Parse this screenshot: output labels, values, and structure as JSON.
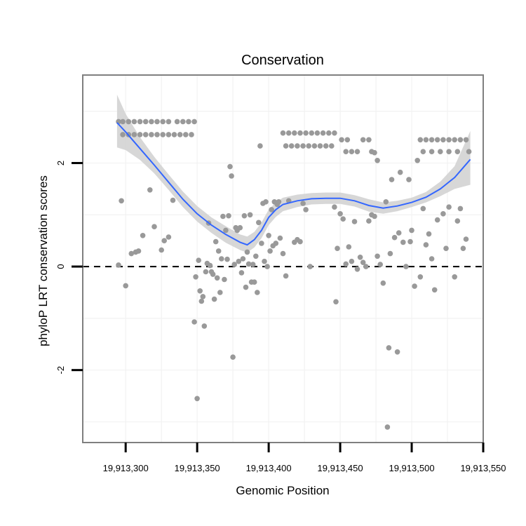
{
  "chart_data": {
    "type": "scatter",
    "title": "Conservation",
    "xlabel": "Genomic Position",
    "ylabel": "phyloP LRT conservation scores",
    "xlim": [
      19913270,
      19913550
    ],
    "ylim": [
      -3.4,
      3.7
    ],
    "x_ticks": [
      19913300,
      19913350,
      19913400,
      19913450,
      19913500,
      19913550
    ],
    "x_tick_labels": [
      "19,913,300",
      "19,913,350",
      "19,913,400",
      "19,913,450",
      "19,913,500",
      "19,913,550"
    ],
    "y_ticks": [
      -2,
      0,
      2
    ],
    "y_tick_labels": [
      "-2",
      "0",
      "2"
    ],
    "grid": true,
    "reference_line": {
      "y": 0,
      "style": "dashed",
      "color": "#000000"
    },
    "colors": {
      "points": "#999999",
      "smooth_line": "#3366ff",
      "ribbon": "#d3d3d3",
      "panel_border": "#7f7f7f",
      "grid": "#f2f2f2"
    },
    "series": [
      {
        "name": "scores",
        "points": [
          [
            19913295,
            2.8
          ],
          [
            19913298,
            2.8
          ],
          [
            19913302,
            2.8
          ],
          [
            19913306,
            2.8
          ],
          [
            19913310,
            2.8
          ],
          [
            19913314,
            2.8
          ],
          [
            19913318,
            2.8
          ],
          [
            19913322,
            2.8
          ],
          [
            19913326,
            2.8
          ],
          [
            19913330,
            2.8
          ],
          [
            19913336,
            2.8
          ],
          [
            19913340,
            2.8
          ],
          [
            19913344,
            2.8
          ],
          [
            19913348,
            2.8
          ],
          [
            19913298,
            2.55
          ],
          [
            19913302,
            2.55
          ],
          [
            19913306,
            2.55
          ],
          [
            19913310,
            2.55
          ],
          [
            19913314,
            2.55
          ],
          [
            19913318,
            2.55
          ],
          [
            19913322,
            2.55
          ],
          [
            19913326,
            2.55
          ],
          [
            19913330,
            2.55
          ],
          [
            19913334,
            2.55
          ],
          [
            19913338,
            2.55
          ],
          [
            19913342,
            2.55
          ],
          [
            19913346,
            2.55
          ],
          [
            19913295,
            0.03
          ],
          [
            19913297,
            1.27
          ],
          [
            19913300,
            -0.37
          ],
          [
            19913304,
            0.25
          ],
          [
            19913307,
            0.28
          ],
          [
            19913309,
            0.3
          ],
          [
            19913312,
            0.6
          ],
          [
            19913317,
            1.48
          ],
          [
            19913320,
            0.77
          ],
          [
            19913325,
            0.32
          ],
          [
            19913327,
            0.5
          ],
          [
            19913330,
            0.57
          ],
          [
            19913333,
            1.28
          ],
          [
            19913348,
            -1.07
          ],
          [
            19913349,
            -0.2
          ],
          [
            19913350,
            -2.55
          ],
          [
            19913351,
            0.12
          ],
          [
            19913352,
            -0.47
          ],
          [
            19913353,
            -0.67
          ],
          [
            19913354,
            -0.58
          ],
          [
            19913355,
            -1.15
          ],
          [
            19913356,
            -0.1
          ],
          [
            19913357,
            0.06
          ],
          [
            19913358,
            0.84
          ],
          [
            19913359,
            0.02
          ],
          [
            19913360,
            -0.1
          ],
          [
            19913361,
            -0.15
          ],
          [
            19913362,
            -0.63
          ],
          [
            19913363,
            0.48
          ],
          [
            19913364,
            -0.22
          ],
          [
            19913365,
            0.3
          ],
          [
            19913366,
            -0.5
          ],
          [
            19913367,
            0.15
          ],
          [
            19913368,
            0.97
          ],
          [
            19913369,
            -0.25
          ],
          [
            19913370,
            0.7
          ],
          [
            19913371,
            0.14
          ],
          [
            19913372,
            0.98
          ],
          [
            19913373,
            1.93
          ],
          [
            19913374,
            1.75
          ],
          [
            19913375,
            -1.75
          ],
          [
            19913376,
            0.04
          ],
          [
            19913377,
            0.75
          ],
          [
            19913378,
            0.7
          ],
          [
            19913379,
            0.1
          ],
          [
            19913380,
            0.75
          ],
          [
            19913381,
            -0.12
          ],
          [
            19913382,
            0.15
          ],
          [
            19913383,
            0.98
          ],
          [
            19913384,
            -0.4
          ],
          [
            19913385,
            0.28
          ],
          [
            19913386,
            0.05
          ],
          [
            19913387,
            1.0
          ],
          [
            19913388,
            -0.3
          ],
          [
            19913389,
            0.04
          ],
          [
            19913390,
            -0.3
          ],
          [
            19913391,
            0.2
          ],
          [
            19913392,
            -0.5
          ],
          [
            19913393,
            0.85
          ],
          [
            19913394,
            2.33
          ],
          [
            19913395,
            0.45
          ],
          [
            19913396,
            1.22
          ],
          [
            19913397,
            0.1
          ],
          [
            19913398,
            1.25
          ],
          [
            19913399,
            0.0
          ],
          [
            19913400,
            0.6
          ],
          [
            19913401,
            0.3
          ],
          [
            19913402,
            1.1
          ],
          [
            19913403,
            0.4
          ],
          [
            19913404,
            1.25
          ],
          [
            19913405,
            0.45
          ],
          [
            19913406,
            1.2
          ],
          [
            19913407,
            1.25
          ],
          [
            19913408,
            0.55
          ],
          [
            19913410,
            0.25
          ],
          [
            19913412,
            -0.18
          ],
          [
            19913414,
            1.27
          ],
          [
            19913418,
            0.47
          ],
          [
            19913420,
            0.52
          ],
          [
            19913422,
            0.48
          ],
          [
            19913424,
            1.22
          ],
          [
            19913426,
            1.1
          ],
          [
            19913429,
            0.0
          ],
          [
            19913410,
            2.58
          ],
          [
            19913414,
            2.58
          ],
          [
            19913418,
            2.58
          ],
          [
            19913422,
            2.58
          ],
          [
            19913426,
            2.58
          ],
          [
            19913430,
            2.58
          ],
          [
            19913434,
            2.58
          ],
          [
            19913438,
            2.58
          ],
          [
            19913442,
            2.58
          ],
          [
            19913446,
            2.58
          ],
          [
            19913412,
            2.33
          ],
          [
            19913416,
            2.33
          ],
          [
            19913420,
            2.33
          ],
          [
            19913424,
            2.33
          ],
          [
            19913428,
            2.33
          ],
          [
            19913432,
            2.33
          ],
          [
            19913436,
            2.33
          ],
          [
            19913440,
            2.33
          ],
          [
            19913444,
            2.33
          ],
          [
            19913446,
            1.15
          ],
          [
            19913447,
            -0.68
          ],
          [
            19913448,
            0.35
          ],
          [
            19913450,
            1.02
          ],
          [
            19913452,
            0.92
          ],
          [
            19913454,
            0.05
          ],
          [
            19913456,
            0.38
          ],
          [
            19913458,
            0.1
          ],
          [
            19913460,
            0.87
          ],
          [
            19913462,
            -0.05
          ],
          [
            19913464,
            0.18
          ],
          [
            19913466,
            0.08
          ],
          [
            19913468,
            0.0
          ],
          [
            19913470,
            0.88
          ],
          [
            19913472,
            1.0
          ],
          [
            19913474,
            0.97
          ],
          [
            19913476,
            0.2
          ],
          [
            19913478,
            0.04
          ],
          [
            19913480,
            -0.32
          ],
          [
            19913482,
            1.25
          ],
          [
            19913483,
            -3.1
          ],
          [
            19913484,
            -1.57
          ],
          [
            19913485,
            0.25
          ],
          [
            19913486,
            1.68
          ],
          [
            19913488,
            0.56
          ],
          [
            19913490,
            -1.65
          ],
          [
            19913491,
            0.65
          ],
          [
            19913492,
            1.82
          ],
          [
            19913494,
            0.47
          ],
          [
            19913496,
            0.0
          ],
          [
            19913498,
            1.68
          ],
          [
            19913499,
            0.48
          ],
          [
            19913500,
            0.7
          ],
          [
            19913502,
            -0.38
          ],
          [
            19913504,
            2.05
          ],
          [
            19913506,
            -0.2
          ],
          [
            19913508,
            1.12
          ],
          [
            19913510,
            0.42
          ],
          [
            19913512,
            0.63
          ],
          [
            19913514,
            0.15
          ],
          [
            19913516,
            -0.45
          ],
          [
            19913518,
            0.9
          ],
          [
            19913522,
            1.02
          ],
          [
            19913524,
            0.35
          ],
          [
            19913526,
            1.15
          ],
          [
            19913530,
            -0.2
          ],
          [
            19913532,
            0.88
          ],
          [
            19913534,
            1.12
          ],
          [
            19913536,
            0.35
          ],
          [
            19913538,
            0.53
          ],
          [
            19913451,
            2.45
          ],
          [
            19913455,
            2.45
          ],
          [
            19913466,
            2.45
          ],
          [
            19913470,
            2.45
          ],
          [
            19913454,
            2.22
          ],
          [
            19913458,
            2.22
          ],
          [
            19913462,
            2.22
          ],
          [
            19913472,
            2.22
          ],
          [
            19913474,
            2.2
          ],
          [
            19913476,
            2.05
          ],
          [
            19913506,
            2.45
          ],
          [
            19913510,
            2.45
          ],
          [
            19913514,
            2.45
          ],
          [
            19913518,
            2.45
          ],
          [
            19913522,
            2.45
          ],
          [
            19913526,
            2.45
          ],
          [
            19913530,
            2.45
          ],
          [
            19913534,
            2.45
          ],
          [
            19913538,
            2.45
          ],
          [
            19913508,
            2.22
          ],
          [
            19913514,
            2.22
          ],
          [
            19913520,
            2.22
          ],
          [
            19913526,
            2.22
          ],
          [
            19913532,
            2.22
          ],
          [
            19913540,
            2.22
          ]
        ]
      }
    ],
    "smooth_fit": {
      "name": "loess",
      "x": [
        19913294,
        19913300,
        19913310,
        19913320,
        19913330,
        19913340,
        19913350,
        19913360,
        19913370,
        19913380,
        19913385,
        19913390,
        19913395,
        19913400,
        19913405,
        19913410,
        19913420,
        19913430,
        19913440,
        19913450,
        19913460,
        19913470,
        19913480,
        19913490,
        19913500,
        19913510,
        19913520,
        19913530,
        19913541
      ],
      "y": [
        2.78,
        2.6,
        2.28,
        1.96,
        1.63,
        1.3,
        1.02,
        0.8,
        0.62,
        0.47,
        0.42,
        0.52,
        0.7,
        0.95,
        1.1,
        1.2,
        1.27,
        1.31,
        1.32,
        1.32,
        1.27,
        1.18,
        1.13,
        1.17,
        1.24,
        1.34,
        1.5,
        1.72,
        2.07
      ],
      "ci_upper": [
        3.32,
        2.95,
        2.5,
        2.12,
        1.78,
        1.45,
        1.17,
        0.95,
        0.78,
        0.62,
        0.58,
        0.67,
        0.85,
        1.1,
        1.24,
        1.33,
        1.39,
        1.42,
        1.43,
        1.43,
        1.38,
        1.3,
        1.24,
        1.27,
        1.33,
        1.44,
        1.64,
        1.94,
        2.62
      ],
      "ci_lower": [
        2.3,
        2.25,
        2.06,
        1.8,
        1.48,
        1.15,
        0.87,
        0.65,
        0.46,
        0.32,
        0.27,
        0.37,
        0.55,
        0.8,
        0.96,
        1.07,
        1.15,
        1.2,
        1.21,
        1.21,
        1.16,
        1.06,
        1.02,
        1.07,
        1.15,
        1.24,
        1.36,
        1.5,
        1.58
      ]
    }
  }
}
